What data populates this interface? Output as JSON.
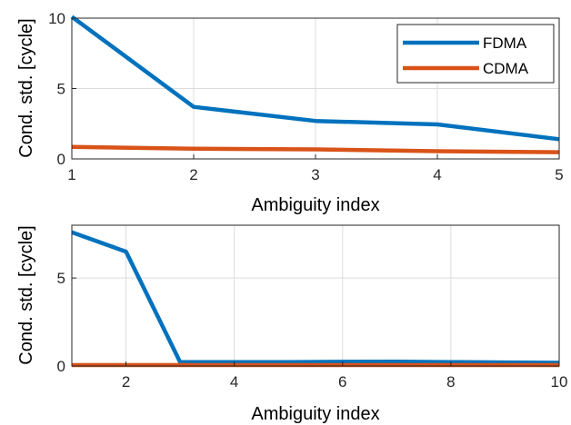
{
  "chart_data": [
    {
      "type": "line",
      "xlabel": "Ambiguity index",
      "ylabel": "Cond. std. [cycle]",
      "xlim": [
        1,
        5
      ],
      "ylim": [
        0,
        10
      ],
      "xticks": [
        1,
        2,
        3,
        4,
        5
      ],
      "yticks": [
        0,
        5,
        10
      ],
      "grid": true,
      "legend": "top-right",
      "x": [
        1,
        2,
        3,
        4,
        5
      ],
      "series": [
        {
          "name": "FDMA",
          "color": "#0072BD",
          "values": [
            10.1,
            3.7,
            2.7,
            2.45,
            1.4
          ]
        },
        {
          "name": "CDMA",
          "color": "#D95319",
          "values": [
            0.85,
            0.72,
            0.68,
            0.55,
            0.48
          ]
        }
      ]
    },
    {
      "type": "line",
      "xlabel": "Ambiguity index",
      "ylabel": "Cond. std. [cycle]",
      "xlim": [
        1,
        10
      ],
      "ylim": [
        0,
        8
      ],
      "xticks": [
        2,
        4,
        6,
        8,
        10
      ],
      "yticks": [
        0,
        5
      ],
      "grid": true,
      "x": [
        1,
        2,
        3,
        4,
        5,
        6,
        7,
        8,
        9,
        10
      ],
      "series": [
        {
          "name": "FDMA",
          "color": "#0072BD",
          "values": [
            7.6,
            6.5,
            0.22,
            0.22,
            0.22,
            0.24,
            0.25,
            0.22,
            0.2,
            0.18
          ]
        },
        {
          "name": "CDMA",
          "color": "#D95319",
          "values": [
            0.05,
            0.05,
            0.05,
            0.05,
            0.05,
            0.05,
            0.05,
            0.05,
            0.05,
            0.05
          ]
        }
      ]
    }
  ]
}
